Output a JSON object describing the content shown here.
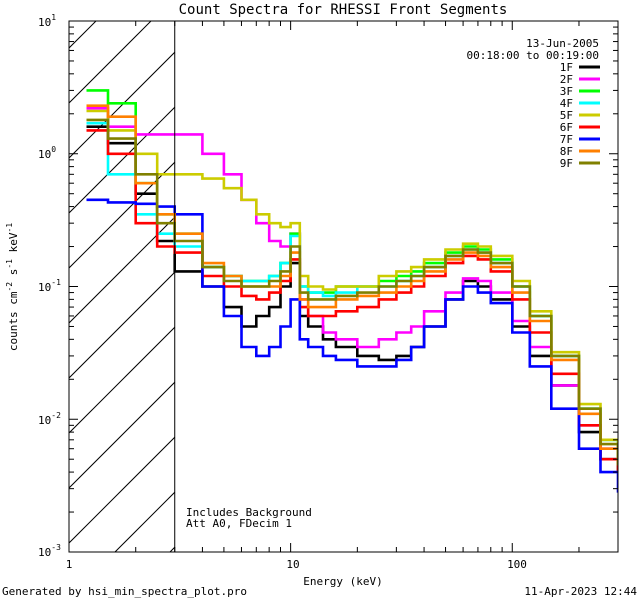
{
  "chart_data": {
    "type": "line",
    "title": "Count Spectra for RHESSI Front Segments",
    "xlabel": "Energy (keV)",
    "ylabel_parts": {
      "base": "counts cm",
      "exp1": "-2",
      "mid": " s",
      "exp2": "-1",
      "mid2": " keV",
      "exp3": "-1"
    },
    "xscale": "log",
    "yscale": "log",
    "xlim": [
      1,
      300
    ],
    "ylim": [
      0.001,
      10
    ],
    "x_ticks": [
      {
        "value": 1,
        "label": "1"
      },
      {
        "value": 10,
        "label": "10"
      },
      {
        "value": 100,
        "label": "100"
      }
    ],
    "y_ticks": [
      {
        "value": 0.001,
        "base": "10",
        "exp": "-3"
      },
      {
        "value": 0.01,
        "base": "10",
        "exp": "-2"
      },
      {
        "value": 0.1,
        "base": "10",
        "exp": "-1"
      },
      {
        "value": 1,
        "base": "10",
        "exp": "0"
      },
      {
        "value": 10,
        "base": "10",
        "exp": "1"
      }
    ],
    "hatched_region": {
      "xmin": 1,
      "xmax": 3
    },
    "annotations": {
      "date": "13-Jun-2005",
      "time_range": "00:18:00 to 00:19:00",
      "note1": "Includes Background",
      "note2": "Att A0, FDecim 1"
    },
    "series": [
      {
        "name": "1F",
        "color": "#000000",
        "points": [
          [
            1.2,
            1.6
          ],
          [
            1.5,
            1.2
          ],
          [
            2,
            0.5
          ],
          [
            2.5,
            0.22
          ],
          [
            3,
            0.13
          ],
          [
            4,
            0.1
          ],
          [
            5,
            0.07
          ],
          [
            6,
            0.05
          ],
          [
            7,
            0.06
          ],
          [
            8,
            0.07
          ],
          [
            9,
            0.1
          ],
          [
            10,
            0.15
          ],
          [
            11,
            0.06
          ],
          [
            12,
            0.05
          ],
          [
            14,
            0.04
          ],
          [
            16,
            0.035
          ],
          [
            20,
            0.03
          ],
          [
            25,
            0.028
          ],
          [
            30,
            0.03
          ],
          [
            35,
            0.035
          ],
          [
            40,
            0.05
          ],
          [
            50,
            0.08
          ],
          [
            60,
            0.11
          ],
          [
            70,
            0.1
          ],
          [
            80,
            0.08
          ],
          [
            100,
            0.05
          ],
          [
            120,
            0.03
          ],
          [
            150,
            0.018
          ],
          [
            200,
            0.008
          ],
          [
            250,
            0.005
          ],
          [
            300,
            0.004
          ]
        ]
      },
      {
        "name": "2F",
        "color": "#ff00ff",
        "points": [
          [
            1.2,
            2.2
          ],
          [
            1.5,
            1.6
          ],
          [
            2,
            1.4
          ],
          [
            2.5,
            1.4
          ],
          [
            3,
            1.4
          ],
          [
            4,
            1.0
          ],
          [
            5,
            0.7
          ],
          [
            6,
            0.45
          ],
          [
            7,
            0.3
          ],
          [
            8,
            0.22
          ],
          [
            9,
            0.2
          ],
          [
            10,
            0.25
          ],
          [
            11,
            0.08
          ],
          [
            12,
            0.06
          ],
          [
            14,
            0.045
          ],
          [
            16,
            0.04
          ],
          [
            20,
            0.035
          ],
          [
            25,
            0.04
          ],
          [
            30,
            0.045
          ],
          [
            35,
            0.05
          ],
          [
            40,
            0.065
          ],
          [
            50,
            0.09
          ],
          [
            60,
            0.115
          ],
          [
            70,
            0.11
          ],
          [
            80,
            0.09
          ],
          [
            100,
            0.055
          ],
          [
            120,
            0.035
          ],
          [
            150,
            0.018
          ],
          [
            200,
            0.009
          ],
          [
            250,
            0.006
          ],
          [
            300,
            0.005
          ]
        ]
      },
      {
        "name": "3F",
        "color": "#00ff00",
        "points": [
          [
            1.2,
            3.0
          ],
          [
            1.5,
            2.4
          ],
          [
            2,
            0.6
          ],
          [
            2.5,
            0.35
          ],
          [
            3,
            0.25
          ],
          [
            4,
            0.14
          ],
          [
            5,
            0.12
          ],
          [
            6,
            0.11
          ],
          [
            7,
            0.11
          ],
          [
            8,
            0.12
          ],
          [
            9,
            0.15
          ],
          [
            10,
            0.25
          ],
          [
            11,
            0.1
          ],
          [
            12,
            0.09
          ],
          [
            14,
            0.09
          ],
          [
            16,
            0.1
          ],
          [
            20,
            0.1
          ],
          [
            25,
            0.11
          ],
          [
            30,
            0.12
          ],
          [
            35,
            0.13
          ],
          [
            40,
            0.15
          ],
          [
            50,
            0.18
          ],
          [
            60,
            0.2
          ],
          [
            70,
            0.19
          ],
          [
            80,
            0.16
          ],
          [
            100,
            0.1
          ],
          [
            120,
            0.06
          ],
          [
            150,
            0.03
          ],
          [
            200,
            0.012
          ],
          [
            250,
            0.007
          ],
          [
            300,
            0.005
          ]
        ]
      },
      {
        "name": "4F",
        "color": "#00ffff",
        "points": [
          [
            1.2,
            1.7
          ],
          [
            1.5,
            0.7
          ],
          [
            2,
            0.35
          ],
          [
            2.5,
            0.25
          ],
          [
            3,
            0.2
          ],
          [
            4,
            0.14
          ],
          [
            5,
            0.12
          ],
          [
            6,
            0.11
          ],
          [
            7,
            0.11
          ],
          [
            8,
            0.12
          ],
          [
            9,
            0.15
          ],
          [
            10,
            0.24
          ],
          [
            11,
            0.1
          ],
          [
            12,
            0.09
          ],
          [
            14,
            0.085
          ],
          [
            16,
            0.09
          ],
          [
            20,
            0.1
          ],
          [
            25,
            0.1
          ],
          [
            30,
            0.11
          ],
          [
            35,
            0.12
          ],
          [
            40,
            0.14
          ],
          [
            50,
            0.17
          ],
          [
            60,
            0.19
          ],
          [
            70,
            0.18
          ],
          [
            80,
            0.15
          ],
          [
            100,
            0.1
          ],
          [
            120,
            0.06
          ],
          [
            150,
            0.03
          ],
          [
            200,
            0.012
          ],
          [
            250,
            0.007
          ],
          [
            300,
            0.005
          ]
        ]
      },
      {
        "name": "5F",
        "color": "#cccc00",
        "points": [
          [
            1.2,
            2.1
          ],
          [
            1.5,
            1.5
          ],
          [
            2,
            1.0
          ],
          [
            2.5,
            0.7
          ],
          [
            3,
            0.7
          ],
          [
            4,
            0.65
          ],
          [
            5,
            0.55
          ],
          [
            6,
            0.45
          ],
          [
            7,
            0.35
          ],
          [
            8,
            0.3
          ],
          [
            9,
            0.28
          ],
          [
            10,
            0.3
          ],
          [
            11,
            0.12
          ],
          [
            12,
            0.1
          ],
          [
            14,
            0.095
          ],
          [
            16,
            0.1
          ],
          [
            20,
            0.1
          ],
          [
            25,
            0.12
          ],
          [
            30,
            0.13
          ],
          [
            35,
            0.14
          ],
          [
            40,
            0.16
          ],
          [
            50,
            0.19
          ],
          [
            60,
            0.21
          ],
          [
            70,
            0.2
          ],
          [
            80,
            0.17
          ],
          [
            100,
            0.11
          ],
          [
            120,
            0.065
          ],
          [
            150,
            0.032
          ],
          [
            200,
            0.013
          ],
          [
            250,
            0.007
          ],
          [
            300,
            0.005
          ]
        ]
      },
      {
        "name": "6F",
        "color": "#ff0000",
        "points": [
          [
            1.2,
            1.5
          ],
          [
            1.5,
            1.0
          ],
          [
            2,
            0.3
          ],
          [
            2.5,
            0.2
          ],
          [
            3,
            0.18
          ],
          [
            4,
            0.12
          ],
          [
            5,
            0.1
          ],
          [
            6,
            0.085
          ],
          [
            7,
            0.08
          ],
          [
            8,
            0.09
          ],
          [
            9,
            0.11
          ],
          [
            10,
            0.16
          ],
          [
            11,
            0.07
          ],
          [
            12,
            0.06
          ],
          [
            14,
            0.06
          ],
          [
            16,
            0.065
          ],
          [
            20,
            0.07
          ],
          [
            25,
            0.08
          ],
          [
            30,
            0.09
          ],
          [
            35,
            0.1
          ],
          [
            40,
            0.12
          ],
          [
            50,
            0.15
          ],
          [
            60,
            0.17
          ],
          [
            70,
            0.16
          ],
          [
            80,
            0.13
          ],
          [
            100,
            0.08
          ],
          [
            120,
            0.045
          ],
          [
            150,
            0.022
          ],
          [
            200,
            0.009
          ],
          [
            250,
            0.005
          ],
          [
            300,
            0.004
          ]
        ]
      },
      {
        "name": "7F",
        "color": "#0000ff",
        "points": [
          [
            1.2,
            0.45
          ],
          [
            1.5,
            0.43
          ],
          [
            2,
            0.42
          ],
          [
            2.5,
            0.4
          ],
          [
            3,
            0.35
          ],
          [
            4,
            0.1
          ],
          [
            5,
            0.06
          ],
          [
            6,
            0.035
          ],
          [
            7,
            0.03
          ],
          [
            8,
            0.035
          ],
          [
            9,
            0.05
          ],
          [
            10,
            0.08
          ],
          [
            11,
            0.04
          ],
          [
            12,
            0.035
          ],
          [
            14,
            0.03
          ],
          [
            16,
            0.028
          ],
          [
            20,
            0.025
          ],
          [
            25,
            0.025
          ],
          [
            30,
            0.028
          ],
          [
            35,
            0.035
          ],
          [
            40,
            0.05
          ],
          [
            50,
            0.08
          ],
          [
            60,
            0.1
          ],
          [
            70,
            0.09
          ],
          [
            80,
            0.075
          ],
          [
            100,
            0.045
          ],
          [
            120,
            0.025
          ],
          [
            150,
            0.012
          ],
          [
            200,
            0.006
          ],
          [
            250,
            0.004
          ],
          [
            300,
            0.0028
          ]
        ]
      },
      {
        "name": "8F",
        "color": "#ff8000",
        "points": [
          [
            1.2,
            2.3
          ],
          [
            1.5,
            1.9
          ],
          [
            2,
            0.6
          ],
          [
            2.5,
            0.35
          ],
          [
            3,
            0.25
          ],
          [
            4,
            0.15
          ],
          [
            5,
            0.12
          ],
          [
            6,
            0.1
          ],
          [
            7,
            0.1
          ],
          [
            8,
            0.1
          ],
          [
            9,
            0.12
          ],
          [
            10,
            0.18
          ],
          [
            11,
            0.08
          ],
          [
            12,
            0.07
          ],
          [
            14,
            0.07
          ],
          [
            16,
            0.08
          ],
          [
            20,
            0.085
          ],
          [
            25,
            0.09
          ],
          [
            30,
            0.1
          ],
          [
            35,
            0.11
          ],
          [
            40,
            0.13
          ],
          [
            50,
            0.16
          ],
          [
            60,
            0.18
          ],
          [
            70,
            0.17
          ],
          [
            80,
            0.14
          ],
          [
            100,
            0.09
          ],
          [
            120,
            0.055
          ],
          [
            150,
            0.028
          ],
          [
            200,
            0.011
          ],
          [
            250,
            0.006
          ],
          [
            300,
            0.0045
          ]
        ]
      },
      {
        "name": "9F",
        "color": "#808000",
        "points": [
          [
            1.2,
            1.8
          ],
          [
            1.5,
            1.3
          ],
          [
            2,
            0.7
          ],
          [
            2.5,
            0.3
          ],
          [
            3,
            0.22
          ],
          [
            4,
            0.14
          ],
          [
            5,
            0.11
          ],
          [
            6,
            0.1
          ],
          [
            7,
            0.1
          ],
          [
            8,
            0.11
          ],
          [
            9,
            0.13
          ],
          [
            10,
            0.2
          ],
          [
            11,
            0.09
          ],
          [
            12,
            0.08
          ],
          [
            14,
            0.08
          ],
          [
            16,
            0.085
          ],
          [
            20,
            0.09
          ],
          [
            25,
            0.1
          ],
          [
            30,
            0.11
          ],
          [
            35,
            0.12
          ],
          [
            40,
            0.14
          ],
          [
            50,
            0.17
          ],
          [
            60,
            0.19
          ],
          [
            70,
            0.18
          ],
          [
            80,
            0.15
          ],
          [
            100,
            0.1
          ],
          [
            120,
            0.06
          ],
          [
            150,
            0.03
          ],
          [
            200,
            0.012
          ],
          [
            250,
            0.0065
          ],
          [
            300,
            0.0045
          ]
        ]
      }
    ]
  },
  "footer": {
    "generated_by": "Generated by hsi_min_spectra_plot.pro",
    "timestamp": "11-Apr-2023 12:44"
  }
}
